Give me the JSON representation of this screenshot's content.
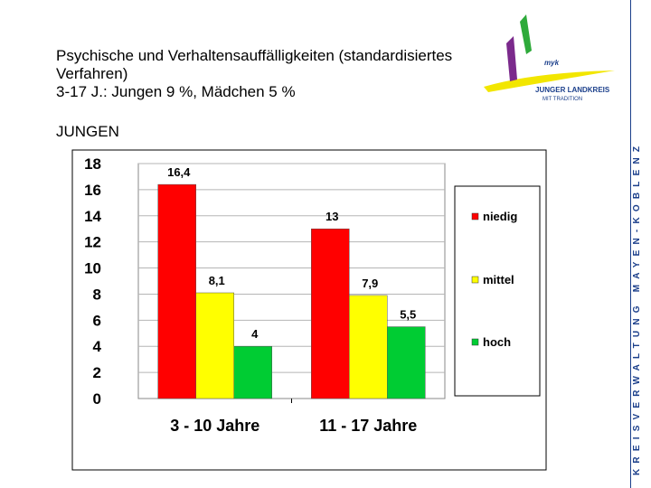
{
  "title": {
    "line1": "Psychische und Verhaltensauffälligkeiten (standardisiertes",
    "line2": "Verfahren)",
    "line3": "3-17 J.: Jungen  9 %, Mädchen 5 %"
  },
  "subheading": "JUNGEN",
  "side_banner": "KREISVERWALTUNG MAYEN-KOBLENZ",
  "logo": {
    "mark": "myk",
    "line1": "JUNGER LANDKREIS",
    "line2": "MIT TRADITION"
  },
  "colors": {
    "niedig": "#ff0000",
    "mittel": "#ffff00",
    "hoch": "#00cc33",
    "band": "#1b3f8b"
  },
  "chart_data": {
    "type": "bar",
    "title": "JUNGEN",
    "xlabel": "",
    "ylabel": "",
    "categories": [
      "3 - 10 Jahre",
      "11 - 17 Jahre"
    ],
    "series": [
      {
        "name": "niedig",
        "values": [
          16.4,
          13
        ],
        "labels": [
          "16,4",
          "13"
        ]
      },
      {
        "name": "mittel",
        "values": [
          8.1,
          7.9
        ],
        "labels": [
          "8,1",
          "7,9"
        ]
      },
      {
        "name": "hoch",
        "values": [
          4,
          5.5
        ],
        "labels": [
          "4",
          "5,5"
        ]
      }
    ],
    "ylim": [
      0,
      18
    ],
    "yticks": [
      "0",
      "2",
      "4",
      "6",
      "8",
      "10",
      "12",
      "14",
      "16",
      "18"
    ],
    "legend_position": "right",
    "grid": true
  }
}
